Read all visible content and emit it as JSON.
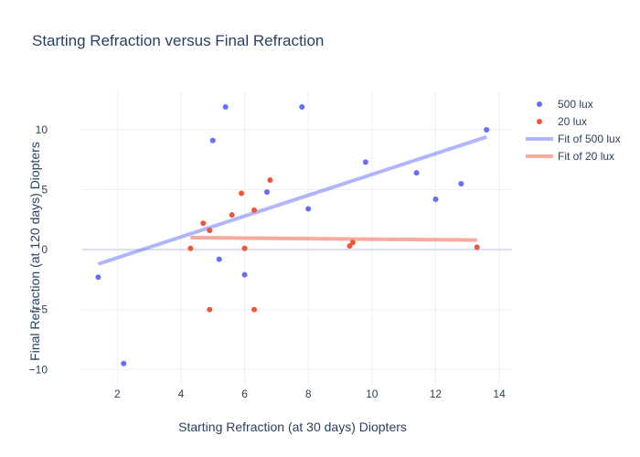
{
  "chart_data": {
    "type": "scatter",
    "title": "Starting Refraction versus Final Refraction",
    "xlabel": "Starting Refraction (at 30 days) Diopters",
    "ylabel": "Final Refraction (at 120 days) Diopters",
    "xlim": [
      0.9,
      14.4
    ],
    "ylim": [
      -11.2,
      13.2
    ],
    "xticks": [
      2,
      4,
      6,
      8,
      10,
      12,
      14
    ],
    "yticks": [
      -10,
      -5,
      0,
      5,
      10
    ],
    "grid": true,
    "legend_position": "top-right",
    "series": [
      {
        "name": "500 lux",
        "kind": "markers",
        "color": "#636efa",
        "points": [
          [
            1.4,
            -2.3
          ],
          [
            2.2,
            -9.5
          ],
          [
            5.0,
            9.1
          ],
          [
            5.2,
            -0.8
          ],
          [
            5.4,
            11.9
          ],
          [
            6.0,
            -2.1
          ],
          [
            6.7,
            4.8
          ],
          [
            7.8,
            11.9
          ],
          [
            8.0,
            3.4
          ],
          [
            9.8,
            7.3
          ],
          [
            11.4,
            6.4
          ],
          [
            12.0,
            4.2
          ],
          [
            12.8,
            5.5
          ],
          [
            13.6,
            10.0
          ]
        ]
      },
      {
        "name": "20 lux",
        "kind": "markers",
        "color": "#ef553b",
        "points": [
          [
            4.3,
            0.1
          ],
          [
            4.7,
            2.2
          ],
          [
            4.9,
            1.6
          ],
          [
            4.9,
            -5.0
          ],
          [
            5.6,
            2.9
          ],
          [
            5.9,
            4.7
          ],
          [
            6.0,
            0.1
          ],
          [
            6.3,
            3.3
          ],
          [
            6.3,
            -5.0
          ],
          [
            6.8,
            5.8
          ],
          [
            9.3,
            0.3
          ],
          [
            9.4,
            0.6
          ],
          [
            13.3,
            0.2
          ]
        ]
      },
      {
        "name": "Fit of 500 lux",
        "kind": "line",
        "color": "#636efa",
        "points": [
          [
            1.4,
            -1.2
          ],
          [
            13.6,
            9.4
          ]
        ]
      },
      {
        "name": "Fit of 20 lux",
        "kind": "line",
        "color": "#ef553b",
        "points": [
          [
            4.3,
            1.0
          ],
          [
            13.3,
            0.8
          ]
        ]
      }
    ]
  }
}
